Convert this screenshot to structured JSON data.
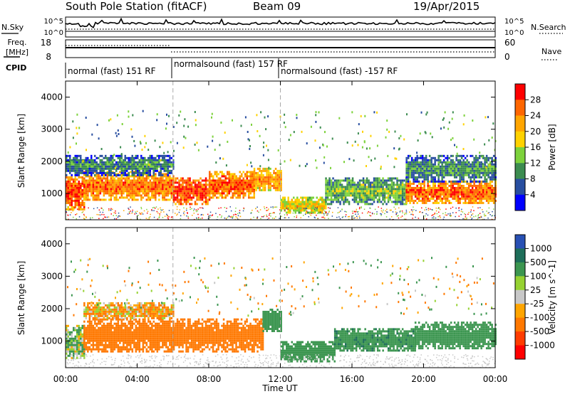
{
  "header": {
    "station": "South Pole Station (fitACF)",
    "beam": "Beam 09",
    "date": "19/Apr/2015"
  },
  "noise_panel": {
    "left_label": "N.Sky",
    "right_label": "N.Search",
    "y_top_label": "10^5",
    "y_bottom_label": "10^0"
  },
  "freq_panel": {
    "left_label_line1": "Freq.",
    "left_label_line2": "[MHz]",
    "left_ticks": [
      "18",
      "8"
    ],
    "right_label": "Nave",
    "right_ticks": [
      "60",
      "0"
    ]
  },
  "cpid": {
    "label": "CPID",
    "segments": [
      {
        "text": "normal (fast) 151 RF",
        "start_hour": 0,
        "end_hour": 6
      },
      {
        "text": "normalsound (fast) 157 RF",
        "start_hour": 6,
        "end_hour": 12
      },
      {
        "text": "normalsound (fast) -157 RF",
        "start_hour": 12,
        "end_hour": 24
      }
    ]
  },
  "x_axis": {
    "label": "Time UT",
    "ticks": [
      "00:00",
      "04:00",
      "08:00",
      "12:00",
      "16:00",
      "20:00",
      "00:00"
    ]
  },
  "power_colorbar": {
    "label": "Power [dB]",
    "ticks": [
      "28",
      "24",
      "20",
      "16",
      "12",
      "8",
      "4"
    ],
    "colors": [
      "#ff0000",
      "#ff6600",
      "#ffa500",
      "#ffd200",
      "#7dd23c",
      "#3c8c50",
      "#284ea0",
      "#0000ff"
    ]
  },
  "velocity_colorbar": {
    "label": "Velocity [m s^-1]",
    "ticks": [
      "1000",
      "500",
      "100",
      "25",
      "-25",
      "-100",
      "-500",
      "-1000"
    ],
    "colors": [
      "#2850b4",
      "#1e6e5a",
      "#3c9650",
      "#96d232",
      "#c8c8c8",
      "#ffa500",
      "#ff7800",
      "#ff3c00",
      "#ff0000"
    ]
  },
  "chart_data": [
    {
      "type": "heatmap",
      "title": "Power",
      "ylabel": "Slant Range [km]",
      "xlabel": "",
      "xlim": [
        0,
        24
      ],
      "ylim": [
        180,
        4500
      ],
      "y_ticks": [
        1000,
        2000,
        3000,
        4000
      ],
      "x_tick_hours": [
        0,
        4,
        8,
        12,
        16,
        20,
        24
      ],
      "colorbar_range": [
        0,
        30
      ],
      "regions": [
        {
          "start_hour": 0.0,
          "end_hour": 1.0,
          "range_km": [
            500,
            1600
          ],
          "value": 26
        },
        {
          "start_hour": 1.0,
          "end_hour": 6.0,
          "range_km": [
            800,
            1700
          ],
          "value": 24
        },
        {
          "start_hour": 0.0,
          "end_hour": 6.0,
          "range_km": [
            1600,
            2200
          ],
          "value": 8
        },
        {
          "start_hour": 6.0,
          "end_hour": 8.0,
          "range_km": [
            700,
            1500
          ],
          "value": 27
        },
        {
          "start_hour": 8.0,
          "end_hour": 10.5,
          "range_km": [
            900,
            1700
          ],
          "value": 25
        },
        {
          "start_hour": 10.5,
          "end_hour": 12.0,
          "range_km": [
            1100,
            1800
          ],
          "value": 22
        },
        {
          "start_hour": 12.0,
          "end_hour": 14.5,
          "range_km": [
            400,
            900
          ],
          "value": 18
        },
        {
          "start_hour": 14.5,
          "end_hour": 19.0,
          "range_km": [
            700,
            1500
          ],
          "value": 12
        },
        {
          "start_hour": 19.0,
          "end_hour": 24.0,
          "range_km": [
            700,
            1400
          ],
          "value": 25
        },
        {
          "start_hour": 19.0,
          "end_hour": 24.0,
          "range_km": [
            1400,
            2200
          ],
          "value": 9
        }
      ]
    },
    {
      "type": "heatmap",
      "title": "Velocity",
      "ylabel": "Slant Range [km]",
      "xlabel": "Time UT",
      "xlim": [
        0,
        24
      ],
      "ylim": [
        180,
        4500
      ],
      "y_ticks": [
        1000,
        2000,
        3000,
        4000
      ],
      "x_tick_hours": [
        0,
        4,
        8,
        12,
        16,
        20,
        24
      ],
      "colorbar_range": [
        -1000,
        1000
      ],
      "regions": [
        {
          "start_hour": 0.0,
          "end_hour": 1.0,
          "range_km": [
            500,
            1500
          ],
          "value": 100
        },
        {
          "start_hour": 1.0,
          "end_hour": 6.0,
          "range_km": [
            700,
            1700
          ],
          "value": -300
        },
        {
          "start_hour": 6.0,
          "end_hour": 11.0,
          "range_km": [
            700,
            1700
          ],
          "value": -300
        },
        {
          "start_hour": 11.0,
          "end_hour": 12.0,
          "range_km": [
            1300,
            2000
          ],
          "value": 300
        },
        {
          "start_hour": 12.0,
          "end_hour": 15.0,
          "range_km": [
            400,
            1000
          ],
          "value": 300
        },
        {
          "start_hour": 15.0,
          "end_hour": 19.5,
          "range_km": [
            700,
            1400
          ],
          "value": 400
        },
        {
          "start_hour": 19.5,
          "end_hour": 24.0,
          "range_km": [
            800,
            1600
          ],
          "value": 250
        },
        {
          "start_hour": 1.0,
          "end_hour": 6.0,
          "range_km": [
            1700,
            2200
          ],
          "value": -80
        }
      ]
    }
  ]
}
